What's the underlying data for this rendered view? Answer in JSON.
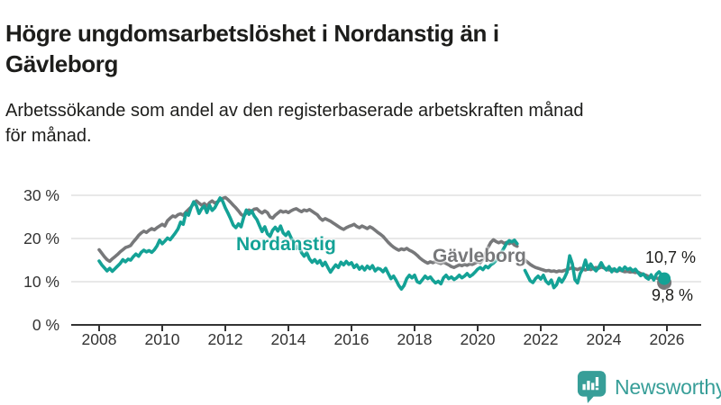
{
  "header": {
    "title_lines": [
      "Högre ungdomsarbetslöshet i Nordanstig än i",
      "Gävleborg"
    ],
    "subtitle_lines": [
      "Arbetssökande som andel av den registerbaserade arbetskraften månad",
      "för månad."
    ]
  },
  "chart_data": {
    "type": "line",
    "title": "Högre ungdomsarbetslöshet i Nordanstig än i Gävleborg",
    "subtitle": "Arbetssökande som andel av den registerbaserade arbetskraften månad för månad.",
    "unit": "%",
    "grid": "horizontal",
    "legend_position": "inline-labels",
    "xlim": [
      2007.1,
      2027.1
    ],
    "ylim": [
      0,
      31
    ],
    "x_ticks": [
      2008,
      2010,
      2012,
      2014,
      2016,
      2018,
      2020,
      2022,
      2024,
      2026
    ],
    "y_ticks": [
      0,
      10,
      20,
      30
    ],
    "y_tick_labels": [
      "0 %",
      "10 %",
      "20 %",
      "30 %"
    ],
    "data_gap": {
      "from": 2021.33,
      "to": 2021.5
    },
    "series": [
      {
        "name": "Gävleborg",
        "color": "#77787a",
        "end_value": 9.8,
        "end_label": "9,8 %",
        "segments": [
          {
            "start": 2008.0,
            "step_months": 1,
            "values": [
              17.4,
              16.6,
              15.8,
              15.1,
              14.7,
              15.3,
              15.8,
              16.3,
              16.9,
              17.4,
              17.9,
              18.1,
              18.4,
              19.2,
              19.9,
              20.7,
              21.3,
              21.7,
              21.4,
              21.9,
              22.3,
              22.0,
              22.5,
              22.9,
              23.3,
              22.9,
              24.1,
              24.7,
              25.2,
              25.0,
              25.5,
              25.7,
              25.4,
              26.1,
              26.7,
              27.3,
              28.1,
              28.7,
              28.2,
              27.7,
              28.1,
              27.5,
              28.3,
              28.7,
              28.2,
              28.5,
              28.9,
              29.3,
              29.5,
              29.0,
              28.4,
              27.7,
              27.1,
              26.4,
              25.6,
              25.2,
              25.9,
              26.6,
              26.3,
              26.8,
              26.9,
              26.3,
              25.9,
              26.4,
              26.0,
              25.0,
              24.7,
              25.4,
              25.9,
              26.4,
              26.1,
              26.3,
              26.0,
              26.4,
              26.7,
              26.9,
              26.5,
              26.2,
              26.6,
              26.4,
              26.7,
              26.3,
              25.9,
              25.5,
              24.7,
              24.2,
              24.6,
              24.3,
              24.0,
              23.6,
              23.2,
              22.8,
              22.4,
              22.1,
              22.5,
              22.8,
              23.0,
              23.3,
              22.8,
              22.5,
              22.9,
              22.6,
              22.3,
              22.7,
              22.4,
              21.9,
              21.4,
              21.0,
              20.5,
              19.8,
              19.1,
              18.5,
              18.0,
              17.6,
              17.3,
              17.6,
              17.4,
              17.7,
              17.3,
              17.0,
              16.6,
              16.1,
              15.5,
              15.0,
              14.6,
              14.3,
              14.6,
              14.4,
              14.7,
              14.4,
              14.2,
              14.5,
              14.2,
              13.9,
              13.5,
              13.3,
              13.6,
              13.9,
              13.7,
              14.0,
              13.8,
              14.1,
              14.0,
              14.3,
              14.6,
              14.4,
              15.2,
              16.6,
              18.0,
              19.1,
              19.7,
              19.3,
              19.0,
              19.3,
              18.9,
              19.1,
              18.8,
              19.1,
              18.5,
              18.2
            ]
          },
          {
            "start": 2021.5,
            "step_months": 1,
            "values": [
              15.0,
              14.5,
              14.0,
              13.6,
              13.3,
              13.1,
              12.9,
              12.7,
              12.5,
              12.6,
              12.4,
              12.5,
              12.3,
              12.5,
              12.4,
              12.6,
              12.8,
              13.0,
              13.3,
              13.0,
              12.8,
              13.1,
              12.9,
              12.7,
              13.0,
              12.8,
              13.1,
              13.3,
              13.1,
              13.4,
              13.2,
              13.0,
              12.7,
              12.9,
              12.6,
              12.4,
              12.7,
              12.5,
              12.3,
              12.4,
              12.2,
              12.3,
              12.1,
              12.2,
              11.9,
              11.7,
              11.5,
              11.2,
              11.0,
              10.8,
              10.9,
              10.6,
              10.2,
              9.8
            ]
          }
        ]
      },
      {
        "name": "Nordanstig",
        "color": "#14a296",
        "end_value": 10.7,
        "end_label": "10,7 %",
        "segments": [
          {
            "start": 2008.0,
            "step_months": 1,
            "values": [
              14.8,
              13.9,
              13.2,
              12.5,
              13.1,
              12.4,
              13.0,
              13.6,
              14.2,
              15.1,
              14.6,
              15.2,
              15.0,
              15.8,
              16.4,
              15.9,
              16.8,
              17.3,
              16.9,
              17.2,
              16.8,
              17.4,
              18.3,
              19.6,
              18.8,
              19.4,
              20.1,
              19.7,
              20.5,
              21.3,
              22.2,
              23.8,
              23.3,
              25.9,
              25.4,
              27.2,
              28.5,
              27.6,
              25.8,
              26.9,
              27.5,
              26.0,
              27.7,
              26.5,
              27.1,
              28.3,
              29.4,
              28.6,
              27.1,
              25.9,
              24.6,
              23.1,
              22.5,
              23.4,
              22.7,
              24.9,
              26.6,
              25.6,
              26.4,
              25.2,
              24.4,
              23.0,
              21.6,
              22.7,
              21.1,
              20.5,
              21.9,
              22.6,
              21.7,
              22.9,
              21.3,
              20.7,
              21.5,
              20.2,
              19.1,
              17.7,
              18.4,
              16.7,
              15.9,
              16.7,
              15.3,
              14.5,
              15.1,
              14.3,
              14.9,
              13.7,
              14.5,
              13.3,
              12.2,
              13.1,
              13.9,
              13.3,
              14.5,
              13.9,
              14.7,
              14.0,
              14.4,
              13.3,
              13.9,
              12.9,
              13.5,
              12.7,
              13.6,
              13.0,
              13.7,
              12.5,
              13.1,
              12.9,
              12.3,
              13.1,
              11.9,
              10.7,
              11.3,
              10.3,
              9.1,
              8.3,
              9.1,
              10.7,
              11.5,
              10.9,
              11.5,
              10.0,
              9.7,
              10.5,
              11.3,
              10.7,
              11.1,
              10.3,
              9.7,
              10.1,
              9.5,
              10.9,
              11.5,
              10.7,
              11.1,
              10.5,
              10.9,
              11.5,
              10.9,
              11.3,
              11.9,
              11.2,
              11.6,
              12.2,
              12.9,
              13.3,
              12.8,
              13.6,
              13.2,
              13.9,
              14.3,
              14.9,
              15.8,
              16.8,
              17.8,
              18.9,
              19.5,
              19.2,
              19.6,
              18.8
            ]
          },
          {
            "start": 2021.5,
            "step_months": 1,
            "values": [
              12.6,
              11.4,
              10.2,
              9.8,
              10.7,
              11.3,
              10.6,
              11.5,
              10.1,
              9.5,
              10.4,
              8.6,
              9.3,
              10.8,
              9.9,
              10.9,
              12.2,
              16.0,
              14.2,
              10.5,
              9.7,
              11.9,
              13.0,
              15.0,
              12.9,
              14.1,
              13.1,
              12.5,
              13.3,
              14.4,
              13.3,
              12.7,
              13.5,
              12.3,
              13.0,
              12.4,
              13.2,
              12.6,
              13.4,
              12.8,
              13.1,
              12.5,
              12.9,
              12.1,
              11.4,
              11.8,
              11.0,
              10.6,
              11.6,
              10.4,
              11.7,
              12.3,
              11.5,
              10.7
            ]
          }
        ]
      }
    ],
    "annotations": [
      {
        "text": "10,7 %",
        "series": "Nordanstig"
      },
      {
        "text": "9,8 %",
        "series": "Gävleborg"
      }
    ],
    "colors": {
      "axis": "#333333",
      "gridline": "#d9d9d9",
      "annotation_text": "#1d1d1b"
    }
  },
  "labels": {
    "nordanstig": "Nordanstig",
    "gavleborg": "Gävleborg"
  },
  "branding": {
    "name": "Newsworthy",
    "color": "#379e98"
  }
}
